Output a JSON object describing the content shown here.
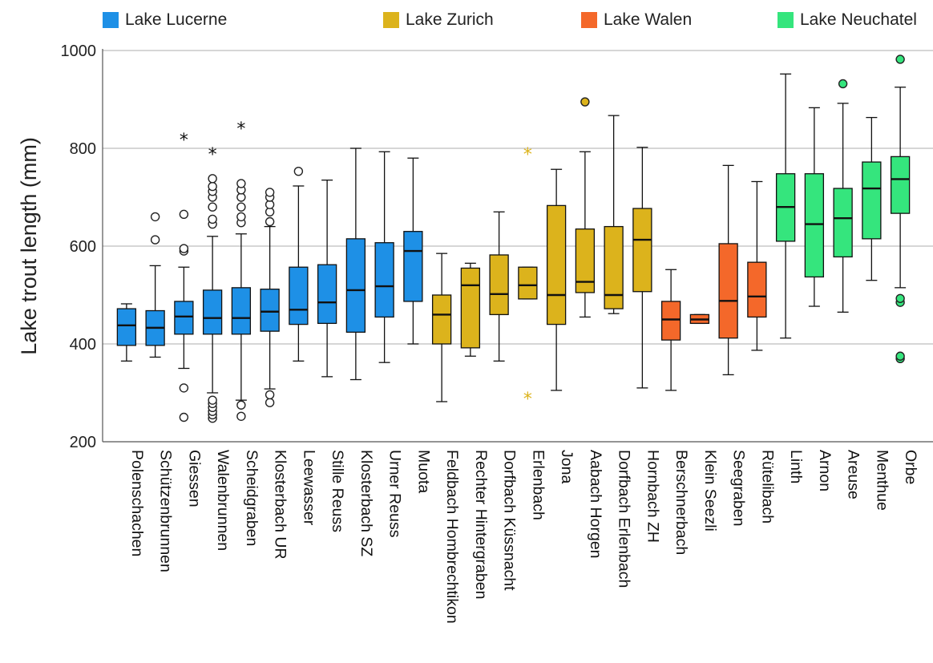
{
  "chart_data": {
    "type": "boxplot",
    "ylabel": "Lake trout length (mm)",
    "ylim": [
      200,
      1000
    ],
    "yticks": [
      200,
      400,
      600,
      800,
      1000
    ],
    "grid": true,
    "legend_position": "top",
    "legend": [
      {
        "name": "Lake Lucerne",
        "color": "#1e90e6"
      },
      {
        "name": "Lake Zurich",
        "color": "#dcb31c"
      },
      {
        "name": "Lake Walen",
        "color": "#f4682a"
      },
      {
        "name": "Lake Neuchatel",
        "color": "#35e57d"
      }
    ],
    "boxes": [
      {
        "category": "Polenschachen",
        "group": 0,
        "min": 365,
        "q1": 397,
        "median": 438,
        "q3": 472,
        "max": 482,
        "outliers": [],
        "extremes": []
      },
      {
        "category": "Schützenbrunnen",
        "group": 0,
        "min": 373,
        "q1": 397,
        "median": 433,
        "q3": 468,
        "max": 560,
        "outliers": [
          613,
          660
        ],
        "extremes": []
      },
      {
        "category": "Giessen",
        "group": 0,
        "min": 350,
        "q1": 420,
        "median": 456,
        "q3": 487,
        "max": 557,
        "outliers": [
          250,
          310,
          590,
          595,
          665
        ],
        "extremes": [
          820
        ]
      },
      {
        "category": "Walenbrunnen",
        "group": 0,
        "min": 300,
        "q1": 420,
        "median": 453,
        "q3": 510,
        "max": 620,
        "outliers": [
          248,
          255,
          262,
          270,
          278,
          285,
          645,
          655,
          680,
          700,
          712,
          722,
          738
        ],
        "extremes": [
          790
        ]
      },
      {
        "category": "Scheidgraben",
        "group": 0,
        "min": 285,
        "q1": 420,
        "median": 453,
        "q3": 515,
        "max": 625,
        "outliers": [
          252,
          275,
          648,
          660,
          680,
          700,
          715,
          728
        ],
        "extremes": [
          843
        ]
      },
      {
        "category": "Klosterbach UR",
        "group": 0,
        "min": 308,
        "q1": 426,
        "median": 466,
        "q3": 512,
        "max": 640,
        "outliers": [
          280,
          296,
          650,
          670,
          685,
          700,
          710
        ],
        "extremes": []
      },
      {
        "category": "Leewasser",
        "group": 0,
        "min": 365,
        "q1": 440,
        "median": 470,
        "q3": 557,
        "max": 723,
        "outliers": [
          753
        ],
        "extremes": []
      },
      {
        "category": "Stille Reuss",
        "group": 0,
        "min": 333,
        "q1": 442,
        "median": 485,
        "q3": 562,
        "max": 735,
        "outliers": [],
        "extremes": []
      },
      {
        "category": "Klosterbach SZ",
        "group": 0,
        "min": 327,
        "q1": 424,
        "median": 510,
        "q3": 615,
        "max": 800,
        "outliers": [],
        "extremes": []
      },
      {
        "category": "Urner Reuss",
        "group": 0,
        "min": 362,
        "q1": 455,
        "median": 518,
        "q3": 607,
        "max": 793,
        "outliers": [],
        "extremes": []
      },
      {
        "category": "Muota",
        "group": 0,
        "min": 400,
        "q1": 487,
        "median": 590,
        "q3": 630,
        "max": 780,
        "outliers": [],
        "extremes": []
      },
      {
        "category": "Feldbach Hombrechtikon",
        "group": 1,
        "min": 282,
        "q1": 400,
        "median": 460,
        "q3": 500,
        "max": 585,
        "outliers": [],
        "extremes": []
      },
      {
        "category": "Rechter Hintergraben",
        "group": 1,
        "min": 375,
        "q1": 392,
        "median": 520,
        "q3": 555,
        "max": 565,
        "outliers": [],
        "extremes": []
      },
      {
        "category": "Dorfbach Küssnacht",
        "group": 1,
        "min": 365,
        "q1": 460,
        "median": 502,
        "q3": 582,
        "max": 670,
        "outliers": [],
        "extremes": []
      },
      {
        "category": "Erlenbach",
        "group": 1,
        "min": 492,
        "q1": 492,
        "median": 520,
        "q3": 557,
        "max": 557,
        "outliers": [],
        "extremes": [
          290,
          790
        ]
      },
      {
        "category": "Jona",
        "group": 1,
        "min": 305,
        "q1": 440,
        "median": 500,
        "q3": 683,
        "max": 757,
        "outliers": [],
        "extremes": []
      },
      {
        "category": "Aabach Horgen",
        "group": 1,
        "min": 455,
        "q1": 505,
        "median": 527,
        "q3": 635,
        "max": 793,
        "outliers": [
          895
        ],
        "extremes": []
      },
      {
        "category": "Dorfbach Erlenbach",
        "group": 1,
        "min": 462,
        "q1": 472,
        "median": 500,
        "q3": 640,
        "max": 867,
        "outliers": [],
        "extremes": []
      },
      {
        "category": "Hornbach ZH",
        "group": 1,
        "min": 310,
        "q1": 507,
        "median": 613,
        "q3": 677,
        "max": 802,
        "outliers": [],
        "extremes": []
      },
      {
        "category": "Berschnerbach",
        "group": 2,
        "min": 305,
        "q1": 408,
        "median": 450,
        "q3": 487,
        "max": 552,
        "outliers": [],
        "extremes": []
      },
      {
        "category": "Klein Seezli",
        "group": 2,
        "min": 442,
        "q1": 442,
        "median": 450,
        "q3": 460,
        "max": 460,
        "outliers": [],
        "extremes": []
      },
      {
        "category": "Seegraben",
        "group": 2,
        "min": 337,
        "q1": 412,
        "median": 488,
        "q3": 605,
        "max": 765,
        "outliers": [],
        "extremes": []
      },
      {
        "category": "Rütelibach",
        "group": 2,
        "min": 387,
        "q1": 455,
        "median": 497,
        "q3": 567,
        "max": 732,
        "outliers": [],
        "extremes": []
      },
      {
        "category": "Linth",
        "group": 3,
        "min": 412,
        "q1": 610,
        "median": 680,
        "q3": 748,
        "max": 952,
        "outliers": [],
        "extremes": []
      },
      {
        "category": "Arnon",
        "group": 3,
        "min": 477,
        "q1": 537,
        "median": 645,
        "q3": 748,
        "max": 883,
        "outliers": [],
        "extremes": []
      },
      {
        "category": "Areuse",
        "group": 3,
        "min": 465,
        "q1": 578,
        "median": 657,
        "q3": 718,
        "max": 892,
        "outliers": [
          932
        ],
        "extremes": []
      },
      {
        "category": "Menthue",
        "group": 3,
        "min": 530,
        "q1": 615,
        "median": 718,
        "q3": 772,
        "max": 863,
        "outliers": [],
        "extremes": []
      },
      {
        "category": "Orbe",
        "group": 3,
        "min": 515,
        "q1": 667,
        "median": 737,
        "q3": 783,
        "max": 925,
        "outliers": [
          370,
          375,
          485,
          493,
          982
        ],
        "extremes": []
      }
    ]
  }
}
